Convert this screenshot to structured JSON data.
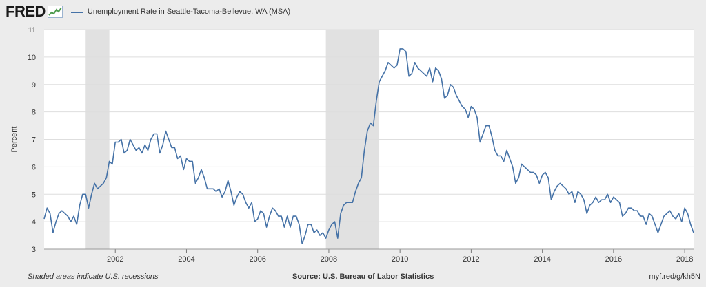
{
  "header": {
    "logo_text": "FRED",
    "logo_icon": "fred-graph-icon",
    "series_title": "Unemployment Rate in Seattle-Tacoma-Bellevue, WA (MSA)"
  },
  "footer": {
    "recession_note": "Shaded areas indicate U.S. recessions",
    "source": "Source: U.S. Bureau of Labor Statistics",
    "short_url": "myf.red/g/kh5N"
  },
  "colors": {
    "line": "#4572a7",
    "recession_shade": "#e1e1e1",
    "plot_background": "#ffffff",
    "page_background": "#ececec"
  },
  "chart_data": {
    "type": "line",
    "title": "",
    "xlabel": "",
    "ylabel": "Percent",
    "ylim": [
      3,
      11
    ],
    "xlim": [
      "2000-01",
      "2018-04"
    ],
    "grid": true,
    "yticks": [
      3,
      4,
      5,
      6,
      7,
      8,
      9,
      10,
      11
    ],
    "xticks": [
      "2002",
      "2004",
      "2006",
      "2008",
      "2010",
      "2012",
      "2014",
      "2016",
      "2018"
    ],
    "recessions": [
      {
        "start": "2001-03",
        "end": "2001-11"
      },
      {
        "start": "2007-12",
        "end": "2009-06"
      }
    ],
    "series": [
      {
        "name": "Unemployment Rate in Seattle-Tacoma-Bellevue, WA (MSA)",
        "start": "2000-01",
        "frequency": "monthly",
        "values": [
          4.1,
          4.5,
          4.3,
          3.6,
          4.0,
          4.3,
          4.4,
          4.3,
          4.2,
          4.0,
          4.2,
          3.9,
          4.6,
          5.0,
          5.0,
          4.5,
          5.0,
          5.4,
          5.2,
          5.3,
          5.4,
          5.6,
          6.2,
          6.1,
          6.9,
          6.9,
          7.0,
          6.5,
          6.6,
          7.0,
          6.8,
          6.6,
          6.7,
          6.5,
          6.8,
          6.6,
          7.0,
          7.2,
          7.2,
          6.5,
          6.8,
          7.3,
          7.0,
          6.7,
          6.7,
          6.3,
          6.4,
          5.9,
          6.3,
          6.2,
          6.2,
          5.4,
          5.6,
          5.9,
          5.6,
          5.2,
          5.2,
          5.2,
          5.1,
          5.2,
          4.9,
          5.1,
          5.5,
          5.1,
          4.6,
          4.9,
          5.1,
          5.0,
          4.7,
          4.5,
          4.7,
          4.0,
          4.1,
          4.4,
          4.3,
          3.8,
          4.2,
          4.5,
          4.4,
          4.2,
          4.2,
          3.8,
          4.2,
          3.8,
          4.2,
          4.2,
          3.9,
          3.2,
          3.5,
          3.9,
          3.9,
          3.6,
          3.7,
          3.5,
          3.6,
          3.4,
          3.7,
          3.9,
          4.0,
          3.4,
          4.3,
          4.6,
          4.7,
          4.7,
          4.7,
          5.1,
          5.4,
          5.6,
          6.6,
          7.3,
          7.6,
          7.5,
          8.4,
          9.1,
          9.3,
          9.5,
          9.8,
          9.7,
          9.6,
          9.7,
          10.3,
          10.3,
          10.2,
          9.3,
          9.4,
          9.8,
          9.6,
          9.5,
          9.4,
          9.3,
          9.6,
          9.1,
          9.6,
          9.5,
          9.2,
          8.5,
          8.6,
          9.0,
          8.9,
          8.6,
          8.4,
          8.2,
          8.1,
          7.8,
          8.2,
          8.1,
          7.8,
          6.9,
          7.2,
          7.5,
          7.5,
          7.1,
          6.6,
          6.4,
          6.4,
          6.2,
          6.6,
          6.3,
          6.0,
          5.4,
          5.6,
          6.1,
          6.0,
          5.9,
          5.8,
          5.8,
          5.7,
          5.4,
          5.7,
          5.8,
          5.6,
          4.8,
          5.1,
          5.3,
          5.4,
          5.3,
          5.2,
          5.0,
          5.1,
          4.7,
          5.1,
          5.0,
          4.8,
          4.3,
          4.6,
          4.7,
          4.9,
          4.7,
          4.8,
          4.8,
          5.0,
          4.7,
          4.9,
          4.8,
          4.7,
          4.2,
          4.3,
          4.5,
          4.5,
          4.4,
          4.4,
          4.2,
          4.2,
          3.9,
          4.3,
          4.2,
          3.9,
          3.6,
          3.9,
          4.2,
          4.3,
          4.4,
          4.2,
          4.1,
          4.3,
          4.0,
          4.5,
          4.3,
          3.9,
          3.6
        ]
      }
    ]
  }
}
